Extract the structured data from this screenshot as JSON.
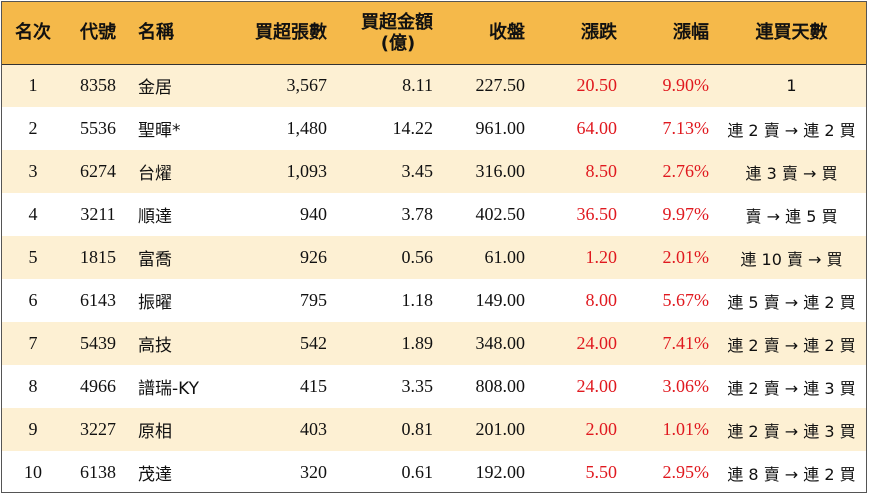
{
  "table": {
    "headers": {
      "rank": "名次",
      "code": "代號",
      "name": "名稱",
      "net_buy_lots": "買超張數",
      "net_buy_amount_line1": "買超金額",
      "net_buy_amount_line2": "(億)",
      "close": "收盤",
      "change": "漲跌",
      "change_pct": "漲幅",
      "streak": "連買天數"
    },
    "rows": [
      {
        "rank": "1",
        "code": "8358",
        "name": "金居",
        "net_buy_lots": "3,567",
        "net_buy_amount": "8.11",
        "close": "227.50",
        "change": "20.50",
        "change_pct": "9.90%",
        "streak": "1"
      },
      {
        "rank": "2",
        "code": "5536",
        "name": "聖暉*",
        "net_buy_lots": "1,480",
        "net_buy_amount": "14.22",
        "close": "961.00",
        "change": "64.00",
        "change_pct": "7.13%",
        "streak": "連 2 賣 → 連 2 買"
      },
      {
        "rank": "3",
        "code": "6274",
        "name": "台燿",
        "net_buy_lots": "1,093",
        "net_buy_amount": "3.45",
        "close": "316.00",
        "change": "8.50",
        "change_pct": "2.76%",
        "streak": "連 3 賣 → 買"
      },
      {
        "rank": "4",
        "code": "3211",
        "name": "順達",
        "net_buy_lots": "940",
        "net_buy_amount": "3.78",
        "close": "402.50",
        "change": "36.50",
        "change_pct": "9.97%",
        "streak": "賣 → 連 5 買"
      },
      {
        "rank": "5",
        "code": "1815",
        "name": "富喬",
        "net_buy_lots": "926",
        "net_buy_amount": "0.56",
        "close": "61.00",
        "change": "1.20",
        "change_pct": "2.01%",
        "streak": "連 10 賣 → 買"
      },
      {
        "rank": "6",
        "code": "6143",
        "name": "振曜",
        "net_buy_lots": "795",
        "net_buy_amount": "1.18",
        "close": "149.00",
        "change": "8.00",
        "change_pct": "5.67%",
        "streak": "連 5 賣 → 連 2 買"
      },
      {
        "rank": "7",
        "code": "5439",
        "name": "高技",
        "net_buy_lots": "542",
        "net_buy_amount": "1.89",
        "close": "348.00",
        "change": "24.00",
        "change_pct": "7.41%",
        "streak": "連 2 賣 → 連 2 買"
      },
      {
        "rank": "8",
        "code": "4966",
        "name": "譜瑞-KY",
        "net_buy_lots": "415",
        "net_buy_amount": "3.35",
        "close": "808.00",
        "change": "24.00",
        "change_pct": "3.06%",
        "streak": "連 2 賣 → 連 3 買"
      },
      {
        "rank": "9",
        "code": "3227",
        "name": "原相",
        "net_buy_lots": "403",
        "net_buy_amount": "0.81",
        "close": "201.00",
        "change": "2.00",
        "change_pct": "1.01%",
        "streak": "連 2 賣 → 連 3 買"
      },
      {
        "rank": "10",
        "code": "6138",
        "name": "茂達",
        "net_buy_lots": "320",
        "net_buy_amount": "0.61",
        "close": "192.00",
        "change": "5.50",
        "change_pct": "2.95%",
        "streak": "連 8 賣 → 連 2 買"
      }
    ]
  },
  "colors": {
    "header_bg": "#f5b94a",
    "odd_row_bg": "#fdf0d3",
    "even_row_bg": "#ffffff",
    "positive_change": "#e0191f"
  }
}
